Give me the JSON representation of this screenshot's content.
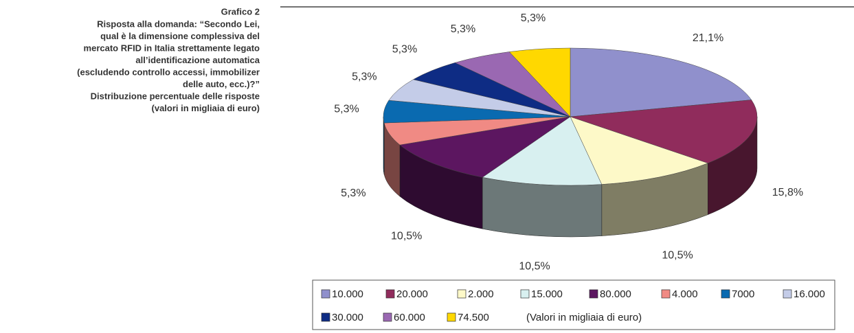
{
  "chart_data": {
    "type": "pie3d",
    "title": "Grafico 2",
    "subtitle_lines": [
      "Risposta alla domanda: “Secondo Lei,",
      "qual è la dimensione complessiva del",
      "mercato RFID in Italia strettamente legato",
      "all’identificazione automatica",
      "(escludendo controllo accessi, immobilizer",
      "delle auto, ecc.)?”",
      "Distribuzione percentuale delle risposte",
      "(valori in migliaia di euro)"
    ],
    "categories": [
      "10.000",
      "20.000",
      "2.000",
      "15.000",
      "80.000",
      "4.000",
      "7000",
      "16.000",
      "30.000",
      "60.000",
      "74.500"
    ],
    "values": [
      21.1,
      15.8,
      10.5,
      10.5,
      10.5,
      5.3,
      5.3,
      5.3,
      5.3,
      5.3,
      5.3
    ],
    "value_labels": [
      "21,1%",
      "15,8%",
      "10,5%",
      "10,5%",
      "10,5%",
      "5,3%",
      "5,3%",
      "5,3%",
      "5,3%",
      "5,3%",
      "5,3%"
    ],
    "colors": [
      "#9090cc",
      "#902c5c",
      "#fdf9c8",
      "#d8f0f0",
      "#5c1660",
      "#f08a84",
      "#0a6ab0",
      "#c4cce8",
      "#0e2c84",
      "#9a68b2",
      "#ffd800"
    ],
    "legend_note": "(Valori in migliaia di euro)"
  }
}
